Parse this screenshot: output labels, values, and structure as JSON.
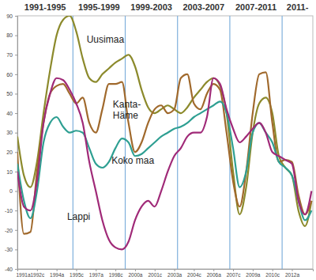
{
  "chart_data": {
    "type": "line",
    "x": [
      1991,
      1991.5,
      1992,
      1992.5,
      1993,
      1993.5,
      1994,
      1994.5,
      1995,
      1995.5,
      1996,
      1996.5,
      1997,
      1997.5,
      1998,
      1998.5,
      1999,
      1999.5,
      2000,
      2000.5,
      2001,
      2001.5,
      2002,
      2002.5,
      2003,
      2003.5,
      2004,
      2004.5,
      2005,
      2005.5,
      2006,
      2006.5,
      2007,
      2007.5,
      2008,
      2008.5,
      2009,
      2009.5,
      2010,
      2010.5,
      2011,
      2011.5,
      2012,
      2012.5,
      2013,
      2013.5
    ],
    "series": [
      {
        "name": "Uusimaa",
        "color": "#8c8a2c",
        "values": [
          28,
          8,
          2,
          15,
          40,
          62,
          80,
          88,
          90,
          82,
          68,
          58,
          56,
          60,
          63,
          66,
          68,
          70,
          64,
          52,
          43,
          40,
          42,
          44,
          42,
          40,
          43,
          48,
          52,
          56,
          58,
          54,
          40,
          10,
          -12,
          2,
          30,
          45,
          48,
          40,
          18,
          12,
          8,
          -10,
          -18,
          -5
        ]
      },
      {
        "name": "Kanta-Häme",
        "color": "#a0692c",
        "values": [
          20,
          -22,
          -21,
          10,
          35,
          50,
          54,
          55,
          50,
          45,
          48,
          35,
          30,
          42,
          55,
          55,
          56,
          35,
          20,
          25,
          35,
          42,
          44,
          40,
          42,
          58,
          60,
          45,
          42,
          50,
          55,
          52,
          30,
          5,
          -8,
          10,
          40,
          60,
          61,
          35,
          15,
          16,
          15,
          -2,
          -12,
          -5
        ]
      },
      {
        "name": "Koko maa",
        "color": "#2e9f92",
        "values": [
          14,
          -5,
          -14,
          0,
          25,
          35,
          38,
          33,
          30,
          31,
          30,
          22,
          14,
          12,
          15,
          22,
          27,
          25,
          18,
          19,
          22,
          25,
          28,
          30,
          32,
          33,
          35,
          38,
          40,
          42,
          44,
          46,
          40,
          22,
          2,
          10,
          30,
          35,
          30,
          25,
          15,
          12,
          8,
          -5,
          -15,
          -10
        ]
      },
      {
        "name": "Lappi",
        "color": "#a02a78",
        "values": [
          10,
          -8,
          -10,
          5,
          35,
          50,
          58,
          57,
          52,
          45,
          35,
          15,
          0,
          -15,
          -25,
          -29,
          -30,
          -26,
          -15,
          -8,
          -5,
          -8,
          0,
          10,
          18,
          22,
          28,
          30,
          30,
          38,
          58,
          55,
          42,
          32,
          25,
          28,
          32,
          35,
          30,
          20,
          18,
          16,
          14,
          -5,
          -12,
          0
        ]
      }
    ],
    "xlim": [
      1991,
      2013.6
    ],
    "xticks": [
      {
        "value": 1991,
        "label": "1991a"
      },
      {
        "value": 1992.5,
        "label": "1992c"
      },
      {
        "value": 1994,
        "label": "1994a"
      },
      {
        "value": 1995.5,
        "label": "1995c"
      },
      {
        "value": 1997,
        "label": "1997a"
      },
      {
        "value": 1998.5,
        "label": "1998c"
      },
      {
        "value": 2000,
        "label": "2000a"
      },
      {
        "value": 2001.5,
        "label": "2001c"
      },
      {
        "value": 2003,
        "label": "2003a"
      },
      {
        "value": 2004.5,
        "label": "2004c"
      },
      {
        "value": 2006,
        "label": "2006a"
      },
      {
        "value": 2007.5,
        "label": "2007c"
      },
      {
        "value": 2009,
        "label": "2009a"
      },
      {
        "value": 2010.5,
        "label": "2010c"
      },
      {
        "value": 2012,
        "label": "2012a"
      }
    ],
    "ylim": [
      -40,
      90
    ],
    "yticks": [
      -40,
      -30,
      -20,
      -10,
      0,
      10,
      20,
      30,
      40,
      50,
      60,
      70,
      80,
      90
    ],
    "periods": [
      {
        "label": "1991-1995",
        "start": 1991,
        "end": 1995.25
      },
      {
        "label": "1995-1999",
        "start": 1995.25,
        "end": 1999.25
      },
      {
        "label": "1999-2003",
        "start": 1999.25,
        "end": 2003.25
      },
      {
        "label": "2003-2007",
        "start": 2003.25,
        "end": 2007.25
      },
      {
        "label": "2007-2011",
        "start": 2007.25,
        "end": 2011.25
      },
      {
        "label": "2011-",
        "start": 2011.25,
        "end": 2013.6
      }
    ],
    "annotations": [
      {
        "text": "Uusimaa",
        "x": 1996.3,
        "y": 76
      },
      {
        "text": "Kanta-Häme",
        "x": 1998.3,
        "y": 43
      },
      {
        "text": "Koko maa",
        "x": 1998.2,
        "y": 14
      },
      {
        "text": "Lappi",
        "x": 1994.8,
        "y": -15
      }
    ]
  }
}
